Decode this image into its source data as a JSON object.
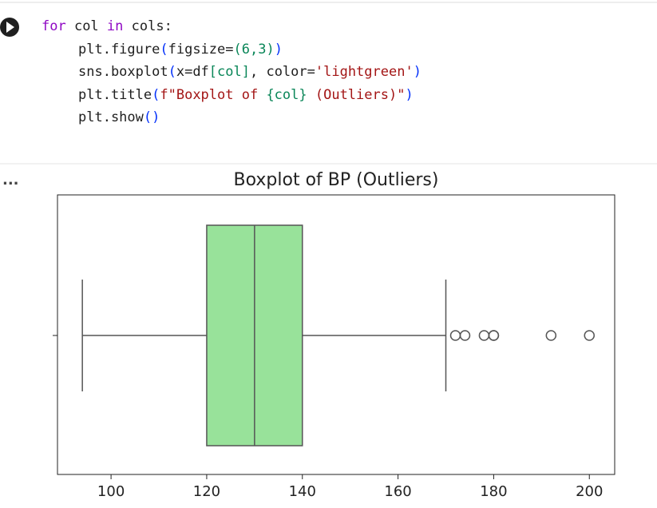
{
  "code_cell": {
    "lines": [
      [
        {
          "text": "for",
          "color": "#8f08c4"
        },
        {
          "text": " col ",
          "color": "#1f1f1f"
        },
        {
          "text": "in",
          "color": "#8f08c4"
        },
        {
          "text": " cols:",
          "color": "#1f1f1f"
        }
      ],
      [
        {
          "text": "plt.figure",
          "color": "#1f1f1f"
        },
        {
          "text": "(",
          "color": "#0431fa"
        },
        {
          "text": "figsize=",
          "color": "#1f1f1f"
        },
        {
          "text": "(6,3)",
          "color": "#098658"
        },
        {
          "text": ")",
          "color": "#0431fa"
        }
      ],
      [
        {
          "text": "sns.boxplot",
          "color": "#1f1f1f"
        },
        {
          "text": "(",
          "color": "#0431fa"
        },
        {
          "text": "x=df",
          "color": "#1f1f1f"
        },
        {
          "text": "[col]",
          "color": "#098658"
        },
        {
          "text": ", color=",
          "color": "#1f1f1f"
        },
        {
          "text": "'lightgreen'",
          "color": "#a31515"
        },
        {
          "text": ")",
          "color": "#0431fa"
        }
      ],
      [
        {
          "text": "plt.title",
          "color": "#1f1f1f"
        },
        {
          "text": "(",
          "color": "#0431fa"
        },
        {
          "text": "f\"Boxplot of ",
          "color": "#a31515"
        },
        {
          "text": "{col}",
          "color": "#098658"
        },
        {
          "text": " (Outliers)\"",
          "color": "#a31515"
        },
        {
          "text": ")",
          "color": "#0431fa"
        }
      ],
      [
        {
          "text": "plt.show",
          "color": "#1f1f1f"
        },
        {
          "text": "()",
          "color": "#0431fa"
        }
      ]
    ],
    "output_marker": "..."
  },
  "chart_data": {
    "type": "box",
    "title": "Boxplot of BP (Outliers)",
    "whislo": 94,
    "q1": 120,
    "med": 130,
    "q3": 140,
    "whishi": 170,
    "fliers": [
      172,
      174,
      178,
      180,
      180,
      192,
      200
    ],
    "color": "#98e29a",
    "edge_color": "#555555",
    "xlim": [
      88.8,
      205.3
    ],
    "xticks": [
      100,
      120,
      140,
      160,
      180,
      200
    ]
  }
}
